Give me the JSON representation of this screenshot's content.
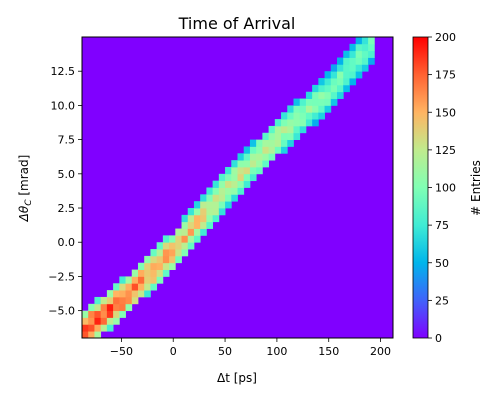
{
  "chart_data": {
    "type": "heatmap",
    "title": "Time of Arrival",
    "xlabel": "Δt [ps]",
    "ylabel": "Δθ_C [mrad]",
    "ylabel_main": "Δθ",
    "ylabel_sub": "C",
    "ylabel_unit": " [mrad]",
    "xlim": [
      -88,
      212
    ],
    "ylim": [
      -7,
      15
    ],
    "x_ticks": [
      -50,
      0,
      50,
      100,
      150,
      200
    ],
    "x_tick_labels": [
      "−50",
      "0",
      "50",
      "100",
      "150",
      "200"
    ],
    "y_ticks": [
      -5.0,
      -2.5,
      0.0,
      2.5,
      5.0,
      7.5,
      10.0,
      12.5
    ],
    "y_tick_labels": [
      "−5.0",
      "−2.5",
      "0.0",
      "2.5",
      "5.0",
      "7.5",
      "10.0",
      "12.5"
    ],
    "bins": {
      "x_edges_start": -88,
      "x_bin_width": 6,
      "nx": 50,
      "y_edges_start": -7,
      "y_bin_width": 0.5,
      "ny": 44
    },
    "band": {
      "description_points_dt": [
        -85,
        -50,
        0,
        50,
        100,
        150,
        190
      ],
      "center_dtheta": [
        -6.4,
        -4.2,
        -0.6,
        3.8,
        7.6,
        11.0,
        14.4
      ],
      "entries_at_center": [
        185,
        170,
        150,
        130,
        115,
        100,
        90
      ],
      "half_width_mrad": 1.4
    },
    "background_entries": 0,
    "colorbar": {
      "label": "# Entries",
      "min": 0,
      "max": 200,
      "ticks": [
        0,
        25,
        50,
        75,
        100,
        125,
        150,
        175,
        200
      ],
      "colormap": "rainbow"
    },
    "grid": false
  }
}
